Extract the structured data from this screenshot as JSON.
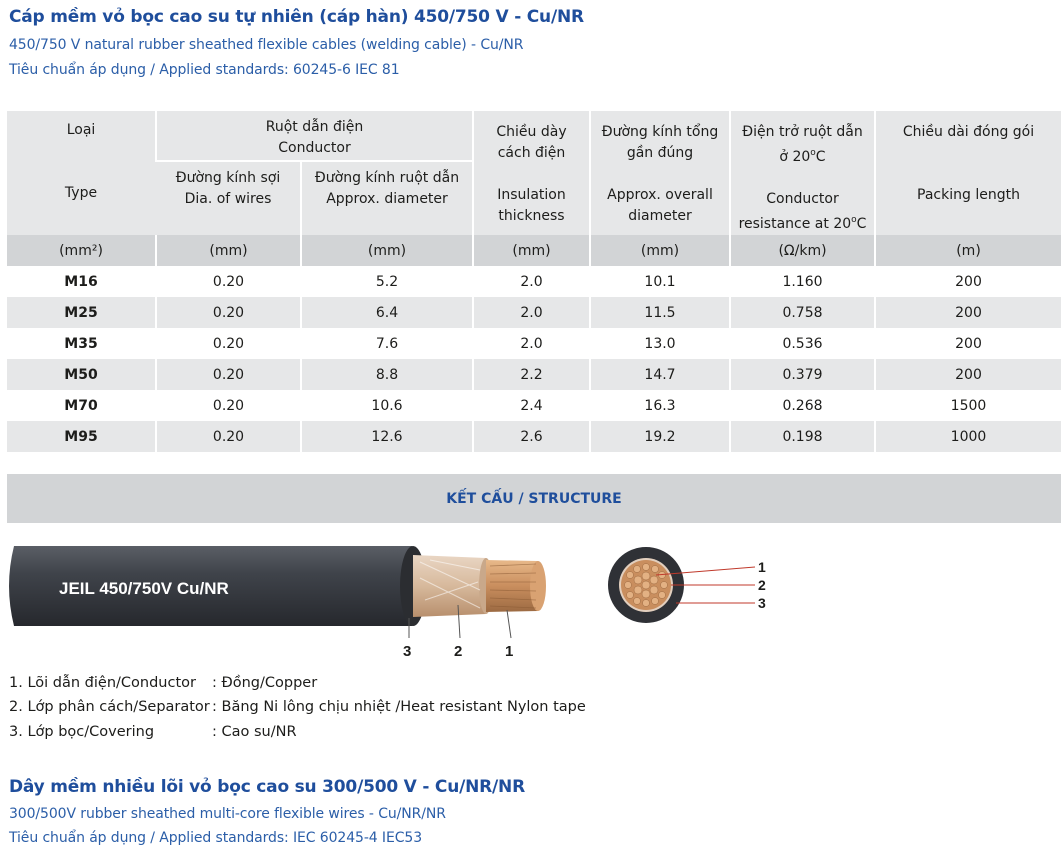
{
  "header": {
    "title": "Cáp mềm vỏ bọc cao su tự nhiên (cáp hàn) 450/750 V - Cu/NR",
    "subtitle_en": "450/750 V natural rubber sheathed flexible cables (welding cable) - Cu/NR",
    "standards": "Tiêu chuẩn áp dụng / Applied standards: 60245-6 IEC 81"
  },
  "table": {
    "col_type_vi": "Loại",
    "col_type_en": "Type",
    "group_conductor_vi": "Ruột dẫn điện",
    "group_conductor_en": "Conductor",
    "col_wire_vi": "Đường kính sợi",
    "col_wire_en": "Dia. of wires",
    "col_cond_vi": "Đường kính ruột dẫn",
    "col_cond_en": "Approx. diameter",
    "col_ins_vi_1": "Chiều dày",
    "col_ins_vi_2": "cách điện",
    "col_ins_en_1": "Insulation",
    "col_ins_en_2": "thickness",
    "col_od_vi_1": "Đường kính tổng",
    "col_od_vi_2": "gần đúng",
    "col_od_en_1": "Approx. overall",
    "col_od_en_2": "diameter",
    "col_res_vi_1": "Điện trở ruột dẫn",
    "col_res_vi_2": "ở 20",
    "col_res_en_1": "Conductor",
    "col_res_en_2": "resistance at 20",
    "deg": "o",
    "celsius": "C",
    "col_pack_vi": "Chiều dài đóng gói",
    "col_pack_en": "Packing length",
    "units": [
      "(mm²)",
      "(mm)",
      "(mm)",
      "(mm)",
      "(mm)",
      "(Ω/km)",
      "(m)"
    ],
    "rows": [
      [
        "M16",
        "0.20",
        "5.2",
        "2.0",
        "10.1",
        "1.160",
        "200"
      ],
      [
        "M25",
        "0.20",
        "6.4",
        "2.0",
        "11.5",
        "0.758",
        "200"
      ],
      [
        "M35",
        "0.20",
        "7.6",
        "2.0",
        "13.0",
        "0.536",
        "200"
      ],
      [
        "M50",
        "0.20",
        "8.8",
        "2.2",
        "14.7",
        "0.379",
        "200"
      ],
      [
        "M70",
        "0.20",
        "10.6",
        "2.4",
        "16.3",
        "0.268",
        "1500"
      ],
      [
        "M95",
        "0.20",
        "12.6",
        "2.6",
        "19.2",
        "0.198",
        "1000"
      ]
    ]
  },
  "structure": {
    "heading": "KẾT CẤU / STRUCTURE",
    "cable_print": "JEIL 450/750V Cu/NR",
    "cable_callouts": [
      "3",
      "2",
      "1"
    ],
    "cross_callouts": [
      "1",
      "2",
      "3"
    ],
    "colors": {
      "sheath": "#3c3f45",
      "copper": "#c98e5e",
      "tape": "#d9c2ac",
      "accent": "#1f4e9c"
    }
  },
  "legend": [
    {
      "part": "1. Lõi dẫn điện/Conductor",
      "material": ": Đồng/Copper"
    },
    {
      "part": "2. Lớp phân cách/Separator",
      "material": ": Băng Ni lông chịu nhiệt /Heat resistant Nylon tape"
    },
    {
      "part": "3. Lớp bọc/Covering",
      "material": ": Cao su/NR"
    }
  ],
  "next_section": {
    "title": "Dây mềm nhiều lõi vỏ bọc cao su 300/500 V - Cu/NR/NR",
    "subtitle_en": "300/500V rubber sheathed multi-core flexible wires - Cu/NR/NR",
    "standards": "Tiêu chuẩn áp dụng / Applied standards: IEC 60245-4 IEC53"
  }
}
